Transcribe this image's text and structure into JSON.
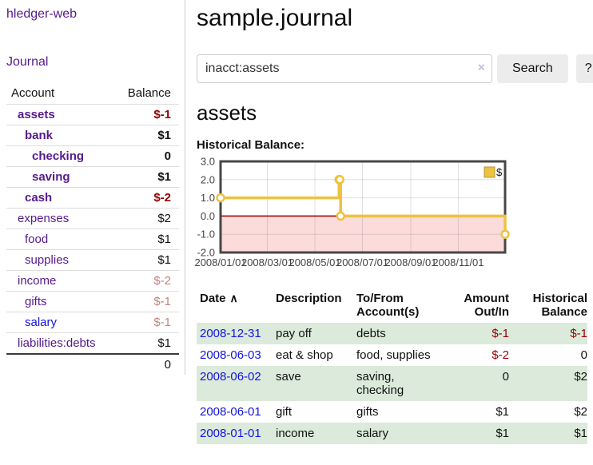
{
  "colors": {
    "link_purple": "#551a8b",
    "link_blue": "#1414dd",
    "negative_red": "#940000",
    "negative_muted": "#c28484",
    "row_green": "#dbeadb"
  },
  "sidebar": {
    "app_title": "hledger-web",
    "nav": [
      "Journal"
    ],
    "accounts_table": {
      "headers": [
        "Account",
        "Balance"
      ],
      "rows": [
        {
          "name": "assets",
          "balance": "$-1",
          "indent": 1,
          "bold": true,
          "tone": "neg"
        },
        {
          "name": "bank",
          "balance": "$1",
          "indent": 2,
          "bold": true,
          "tone": "pos"
        },
        {
          "name": "checking",
          "balance": "0",
          "indent": 3,
          "bold": true,
          "tone": "pos"
        },
        {
          "name": "saving",
          "balance": "$1",
          "indent": 3,
          "bold": true,
          "tone": "pos"
        },
        {
          "name": "cash",
          "balance": "$-2",
          "indent": 2,
          "bold": true,
          "tone": "neg"
        },
        {
          "name": "expenses",
          "balance": "$2",
          "indent": 1,
          "bold": false,
          "tone": "pos"
        },
        {
          "name": "food",
          "balance": "$1",
          "indent": 2,
          "bold": false,
          "tone": "pos"
        },
        {
          "name": "supplies",
          "balance": "$1",
          "indent": 2,
          "bold": false,
          "tone": "pos"
        },
        {
          "name": "income",
          "balance": "$-2",
          "indent": 1,
          "bold": false,
          "tone": "negMuted"
        },
        {
          "name": "gifts",
          "balance": "$-1",
          "indent": 2,
          "bold": false,
          "tone": "negMuted"
        },
        {
          "name": "salary",
          "balance": "$-1",
          "indent": 2,
          "bold": false,
          "tone": "negMuted",
          "blue": true
        },
        {
          "name": "liabilities:debts",
          "balance": "$1",
          "indent": 1,
          "bold": false,
          "tone": "pos"
        }
      ],
      "total": "0"
    }
  },
  "main": {
    "title": "sample.journal",
    "search": {
      "value": "inacct:assets",
      "clear_icon": "×",
      "button": "Search",
      "help_button": "?"
    },
    "account_heading": "assets",
    "chart_label": "Historical Balance:"
  },
  "chart_data": {
    "type": "line",
    "step": true,
    "title": "Historical Balance",
    "series": [
      {
        "name": "$",
        "color": "#edc240",
        "points": [
          {
            "date": "2008-01-01",
            "value": 1
          },
          {
            "date": "2008-06-01",
            "value": 2
          },
          {
            "date": "2008-06-02",
            "value": 2
          },
          {
            "date": "2008-06-03",
            "value": 0
          },
          {
            "date": "2008-12-31",
            "value": -1
          }
        ]
      }
    ],
    "x_range": [
      "2008-01-01",
      "2008-12-31"
    ],
    "x_ticks": [
      "2008/01/01",
      "2008/03/01",
      "2008/05/01",
      "2008/07/01",
      "2008/09/01",
      "2008/11/01"
    ],
    "y_ticks": [
      3.0,
      2.0,
      1.0,
      0.0,
      -1.0,
      -2.0
    ],
    "ylim": [
      -2,
      3
    ],
    "grid": true,
    "legend_position": "top-right",
    "colors": {
      "negative_region": "#fcdbdb",
      "zero_line": "#990000",
      "border": "#474747",
      "gridline": "rgba(110,110,110,0.22)",
      "axis_label": "#444444",
      "legend_swatch_border": "#b89a30"
    }
  },
  "register": {
    "headers": {
      "date": "Date",
      "sort_arrow": "∧",
      "description": "Description",
      "accounts": "To/From Account(s)",
      "amount": "Amount Out/In",
      "balance": "Historical Balance"
    },
    "rows": [
      {
        "date": "2008-12-31",
        "description": "pay off",
        "accounts": "debts",
        "amount": "$-1",
        "amount_tone": "neg",
        "balance": "$-1",
        "balance_tone": "neg"
      },
      {
        "date": "2008-06-03",
        "description": "eat & shop",
        "accounts": "food, supplies",
        "amount": "$-2",
        "amount_tone": "neg",
        "balance": "0",
        "balance_tone": "pos"
      },
      {
        "date": "2008-06-02",
        "description": "save",
        "accounts": "saving, checking",
        "amount": "0",
        "amount_tone": "pos",
        "balance": "$2",
        "balance_tone": "pos"
      },
      {
        "date": "2008-06-01",
        "description": "gift",
        "accounts": "gifts",
        "amount": "$1",
        "amount_tone": "pos",
        "balance": "$2",
        "balance_tone": "pos"
      },
      {
        "date": "2008-01-01",
        "description": "income",
        "accounts": "salary",
        "amount": "$1",
        "amount_tone": "pos",
        "balance": "$1",
        "balance_tone": "pos"
      }
    ]
  }
}
